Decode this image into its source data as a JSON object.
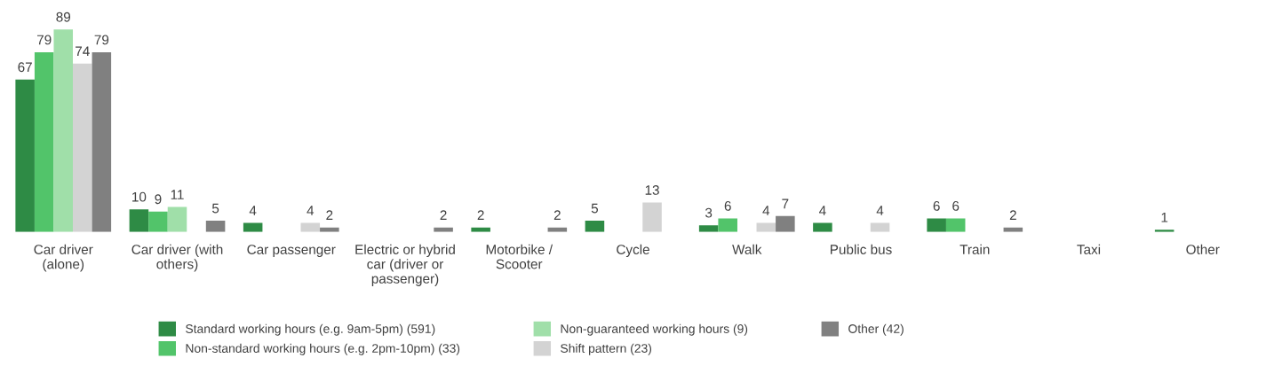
{
  "chart_data": {
    "type": "bar",
    "categories": [
      "Car driver\n(alone)",
      "Car driver (with\nothers)",
      "Car passenger",
      "Electric or hybrid\ncar (driver or\npassenger)",
      "Motorbike /\nScooter",
      "Cycle",
      "Walk",
      "Public bus",
      "Train",
      "Taxi",
      "Other"
    ],
    "series": [
      {
        "name": "Standard working hours (e.g. 9am-5pm) (591)",
        "color": "#2e8b45",
        "values": [
          67,
          10,
          4,
          0,
          2,
          5,
          3,
          4,
          6,
          0,
          1
        ],
        "value_labels": [
          "67",
          "10",
          "4",
          null,
          "2",
          "5",
          "3",
          "4",
          "6",
          null,
          "1"
        ]
      },
      {
        "name": "Non-standard working hours (e.g. 2pm-10pm) (33)",
        "color": "#52c46a",
        "values": [
          79,
          9,
          0,
          0,
          0,
          0,
          6,
          0,
          6,
          0,
          0
        ],
        "value_labels": [
          "79",
          "9",
          null,
          null,
          null,
          null,
          "6",
          null,
          "6",
          null,
          null
        ]
      },
      {
        "name": "Non-guaranteed working hours (9)",
        "color": "#a0dfa9",
        "values": [
          89,
          11,
          0,
          0,
          0,
          0,
          0,
          0,
          0,
          0,
          0
        ],
        "value_labels": [
          "89",
          "11",
          null,
          null,
          null,
          null,
          null,
          null,
          null,
          null,
          null
        ]
      },
      {
        "name": "Shift pattern (23)",
        "color": "#d3d3d3",
        "values": [
          74,
          0,
          4,
          0,
          0,
          13,
          4,
          4,
          0,
          0,
          0
        ],
        "value_labels": [
          "74",
          null,
          "4",
          null,
          null,
          "13",
          "4",
          "4",
          null,
          null,
          null
        ]
      },
      {
        "name": "Other (42)",
        "color": "#808080",
        "values": [
          79,
          5,
          2,
          2,
          2,
          0,
          7,
          0,
          2,
          0,
          0
        ],
        "value_labels": [
          "79",
          "5",
          "2",
          "2",
          "2",
          null,
          "7",
          null,
          "2",
          null,
          null
        ]
      }
    ],
    "legend": "bottom",
    "grid": false
  }
}
